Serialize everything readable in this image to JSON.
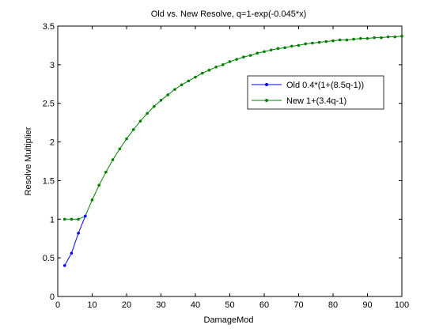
{
  "chart_data": {
    "type": "line",
    "title": "Old vs. New Resolve, q=1-exp(-0.045*x)",
    "xlabel": "DamageMod",
    "ylabel": "Resolve Multiplier",
    "xlim": [
      0,
      100
    ],
    "ylim": [
      0,
      3.5
    ],
    "xticks": [
      "0",
      "10",
      "20",
      "30",
      "40",
      "50",
      "60",
      "70",
      "80",
      "90",
      "100"
    ],
    "yticks": [
      "0",
      "0.5",
      "1",
      "1.5",
      "2",
      "2.5",
      "3",
      "3.5"
    ],
    "grid": false,
    "legend_position": "top-right",
    "series": [
      {
        "name": "Old 0.4*(1+(8.5q-1))",
        "color": "#0000ff",
        "x": [
          2,
          4,
          6,
          8
        ],
        "y": [
          0.4,
          0.56,
          0.82,
          1.04
        ]
      },
      {
        "name": "New 1+(3.4q-1)",
        "color": "#008000",
        "x": [
          2,
          4,
          6,
          8,
          10,
          12,
          14,
          16,
          18,
          20,
          22,
          24,
          26,
          28,
          30,
          32,
          34,
          36,
          38,
          40,
          42,
          44,
          46,
          48,
          50,
          52,
          54,
          56,
          58,
          60,
          62,
          64,
          66,
          68,
          70,
          72,
          74,
          76,
          78,
          80,
          82,
          84,
          86,
          88,
          90,
          92,
          94,
          96,
          98,
          100
        ],
        "y": [
          1.0,
          1.0,
          1.0,
          1.04,
          1.25,
          1.44,
          1.61,
          1.77,
          1.91,
          2.04,
          2.16,
          2.27,
          2.37,
          2.46,
          2.54,
          2.61,
          2.68,
          2.74,
          2.79,
          2.84,
          2.89,
          2.93,
          2.97,
          3.0,
          3.04,
          3.07,
          3.1,
          3.12,
          3.15,
          3.17,
          3.19,
          3.21,
          3.22,
          3.24,
          3.25,
          3.27,
          3.28,
          3.29,
          3.3,
          3.31,
          3.32,
          3.32,
          3.33,
          3.34,
          3.34,
          3.35,
          3.35,
          3.36,
          3.36,
          3.37
        ]
      }
    ]
  }
}
